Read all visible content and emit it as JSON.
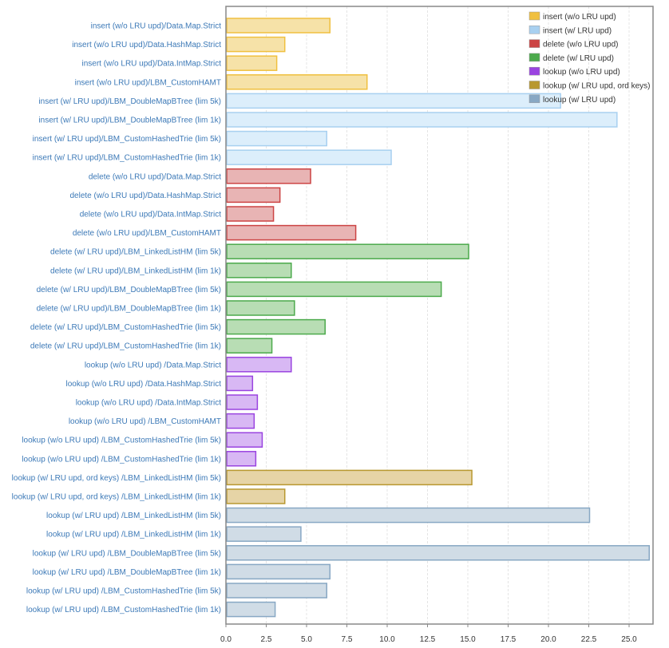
{
  "chart_data": {
    "type": "bar",
    "orientation": "horizontal",
    "grid": true,
    "legend_position": "top-right",
    "xlim": [
      0,
      26.2
    ],
    "xticks": [
      "0.0",
      "2.5",
      "5.0",
      "7.5",
      "10.0",
      "12.5",
      "15.0",
      "17.5",
      "20.0",
      "22.5",
      "25.0"
    ],
    "title": "",
    "xlabel": "",
    "ylabel": "",
    "series": [
      {
        "name": "insert (w/o LRU upd)",
        "color": "#f0c040",
        "fill": "#f6e2a8"
      },
      {
        "name": "insert (w/ LRU upd)",
        "color": "#a8d0f0",
        "fill": "#dceefb"
      },
      {
        "name": "delete (w/o LRU upd)",
        "color": "#cc4444",
        "fill": "#e8b4b4"
      },
      {
        "name": "delete (w/ LRU upd)",
        "color": "#4caa4c",
        "fill": "#b8ddb4"
      },
      {
        "name": "lookup (w/o LRU upd)",
        "color": "#9a44e0",
        "fill": "#d8b8f4"
      },
      {
        "name": "lookup (w/ LRU upd, ord keys)",
        "color": "#b89830",
        "fill": "#e6d4a6"
      },
      {
        "name": "lookup (w/ LRU upd)",
        "color": "#88a8c4",
        "fill": "#d0dce6"
      }
    ],
    "bars": [
      {
        "label": "insert (w/o LRU upd)/Data.Map.Strict",
        "value": 6.4,
        "series": 0
      },
      {
        "label": "insert (w/o LRU upd)/Data.HashMap.Strict",
        "value": 3.6,
        "series": 0
      },
      {
        "label": "insert (w/o LRU upd)/Data.IntMap.Strict",
        "value": 3.1,
        "series": 0
      },
      {
        "label": "insert (w/o LRU upd)/LBM_CustomHAMT",
        "value": 8.7,
        "series": 0
      },
      {
        "label": "insert (w/ LRU upd)/LBM_DoubleMapBTree (lim 5k)",
        "value": 20.7,
        "series": 1
      },
      {
        "label": "insert (w/ LRU upd)/LBM_DoubleMapBTree (lim 1k)",
        "value": 24.2,
        "series": 1
      },
      {
        "label": "insert (w/ LRU upd)/LBM_CustomHashedTrie (lim 5k)",
        "value": 6.2,
        "series": 1
      },
      {
        "label": "insert (w/ LRU upd)/LBM_CustomHashedTrie (lim 1k)",
        "value": 10.2,
        "series": 1
      },
      {
        "label": "delete (w/o LRU upd)/Data.Map.Strict",
        "value": 5.2,
        "series": 2
      },
      {
        "label": "delete (w/o LRU upd)/Data.HashMap.Strict",
        "value": 3.3,
        "series": 2
      },
      {
        "label": "delete (w/o LRU upd)/Data.IntMap.Strict",
        "value": 2.9,
        "series": 2
      },
      {
        "label": "delete (w/o LRU upd)/LBM_CustomHAMT",
        "value": 8.0,
        "series": 2
      },
      {
        "label": "delete (w/ LRU upd)/LBM_LinkedListHM (lim 5k)",
        "value": 15.0,
        "series": 3
      },
      {
        "label": "delete (w/ LRU upd)/LBM_LinkedListHM (lim 1k)",
        "value": 4.0,
        "series": 3
      },
      {
        "label": "delete (w/ LRU upd)/LBM_DoubleMapBTree (lim 5k)",
        "value": 13.3,
        "series": 3
      },
      {
        "label": "delete (w/ LRU upd)/LBM_DoubleMapBTree (lim 1k)",
        "value": 4.2,
        "series": 3
      },
      {
        "label": "delete (w/ LRU upd)/LBM_CustomHashedTrie (lim 5k)",
        "value": 6.1,
        "series": 3
      },
      {
        "label": "delete (w/ LRU upd)/LBM_CustomHashedTrie (lim 1k)",
        "value": 2.8,
        "series": 3
      },
      {
        "label": "lookup (w/o LRU upd) /Data.Map.Strict",
        "value": 4.0,
        "series": 4
      },
      {
        "label": "lookup (w/o LRU upd) /Data.HashMap.Strict",
        "value": 1.6,
        "series": 4
      },
      {
        "label": "lookup (w/o LRU upd) /Data.IntMap.Strict",
        "value": 1.9,
        "series": 4
      },
      {
        "label": "lookup (w/o LRU upd) /LBM_CustomHAMT",
        "value": 1.7,
        "series": 4
      },
      {
        "label": "lookup (w/o LRU upd) /LBM_CustomHashedTrie (lim 5k)",
        "value": 2.2,
        "series": 4
      },
      {
        "label": "lookup (w/o LRU upd) /LBM_CustomHashedTrie (lim 1k)",
        "value": 1.8,
        "series": 4
      },
      {
        "label": "lookup (w/ LRU upd, ord keys) /LBM_LinkedListHM (lim 5k)",
        "value": 15.2,
        "series": 5
      },
      {
        "label": "lookup (w/ LRU upd, ord keys) /LBM_LinkedListHM (lim 1k)",
        "value": 3.6,
        "series": 5
      },
      {
        "label": "lookup (w/ LRU upd) /LBM_LinkedListHM (lim 5k)",
        "value": 22.5,
        "series": 6
      },
      {
        "label": "lookup (w/ LRU upd) /LBM_LinkedListHM (lim 1k)",
        "value": 4.6,
        "series": 6
      },
      {
        "label": "lookup (w/ LRU upd) /LBM_DoubleMapBTree (lim 5k)",
        "value": 26.2,
        "series": 6
      },
      {
        "label": "lookup (w/ LRU upd) /LBM_DoubleMapBTree (lim 1k)",
        "value": 6.4,
        "series": 6
      },
      {
        "label": "lookup (w/ LRU upd) /LBM_CustomHashedTrie (lim 5k)",
        "value": 6.2,
        "series": 6
      },
      {
        "label": "lookup (w/ LRU upd) /LBM_CustomHashedTrie (lim 1k)",
        "value": 3.0,
        "series": 6
      }
    ]
  }
}
